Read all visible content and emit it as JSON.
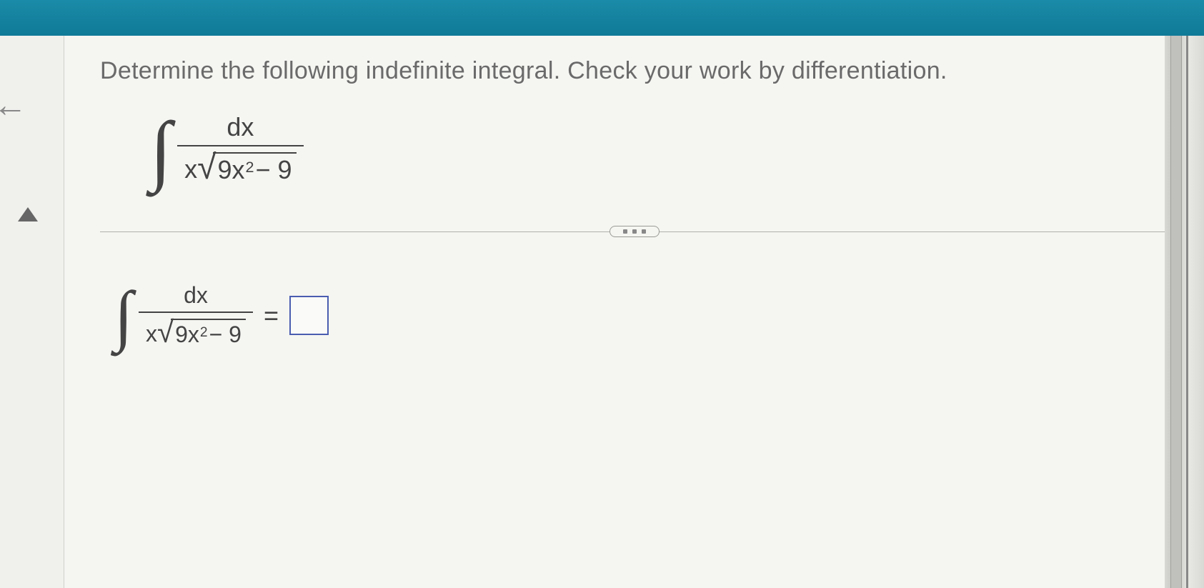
{
  "instruction": "Determine the following indefinite integral. Check your work by differentiation.",
  "integral": {
    "numerator": "dx",
    "denom_outer": "x",
    "radicand_coef": "9x",
    "radicand_exp": "2",
    "radicand_tail": " − 9"
  },
  "answer": {
    "numerator": "dx",
    "denom_outer": "x",
    "radicand_coef": "9x",
    "radicand_exp": "2",
    "radicand_tail": " − 9",
    "equals": "="
  },
  "colors": {
    "header": "#1a8ba8",
    "text": "#6a6a6a",
    "math": "#444444",
    "answer_box_border": "#4a5db0",
    "background": "#f5f5f2"
  }
}
